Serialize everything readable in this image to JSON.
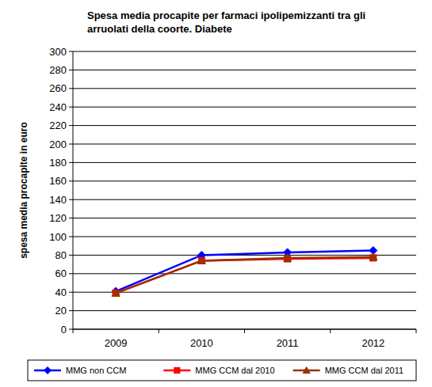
{
  "chart_data": {
    "type": "line",
    "title": "Spesa media procapite per farmaci ipolipemizzanti tra gli arruolati della coorte. Diabete",
    "y_label": "spesa media procapite in euro",
    "categories": [
      "2009",
      "2010",
      "2011",
      "2012"
    ],
    "series": [
      {
        "name": "MMG non CCM",
        "color": "#0000ff",
        "marker": "diamond",
        "line_style": "solid",
        "values": [
          41,
          80,
          83,
          85
        ]
      },
      {
        "name": "MMG CCM dal 2010",
        "color": "#ff0000",
        "marker": "square",
        "line_style": "solid",
        "values": [
          39,
          74,
          76,
          77
        ]
      },
      {
        "name": "MMG CCM dal 2011",
        "color": "#993300",
        "marker": "triangle",
        "line_style": "solid",
        "values": [
          39,
          74,
          77,
          78
        ]
      }
    ],
    "ylim": [
      0,
      300
    ],
    "yticks": [
      0,
      20,
      40,
      60,
      80,
      100,
      120,
      140,
      160,
      180,
      200,
      220,
      240,
      260,
      280,
      300
    ],
    "grid": true,
    "legend": "bottom"
  }
}
